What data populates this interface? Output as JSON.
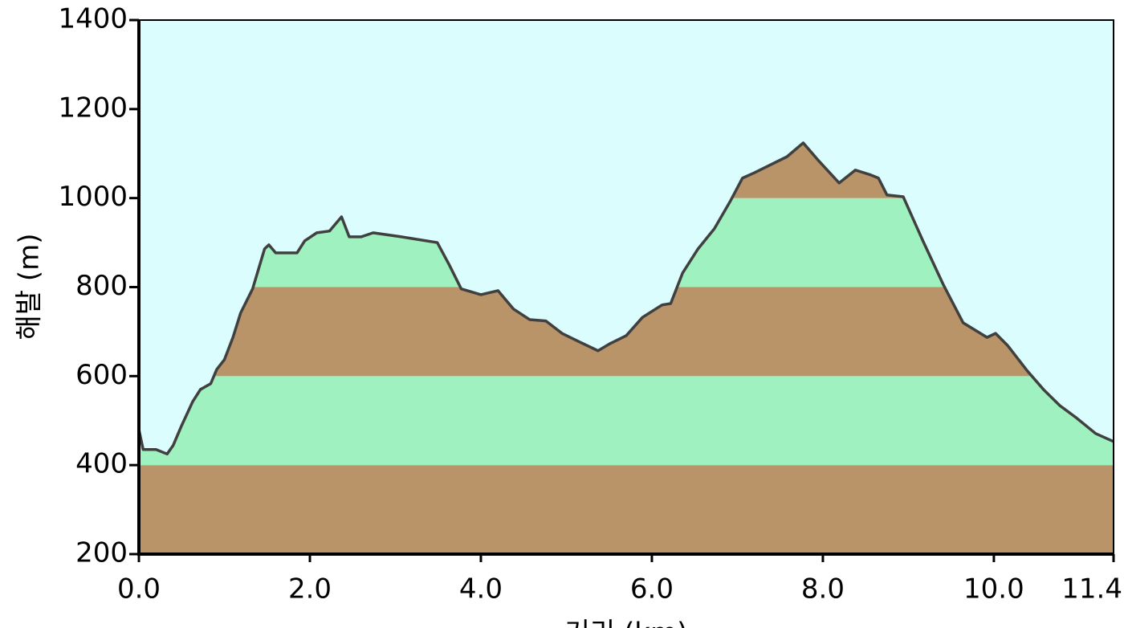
{
  "chart_data": {
    "type": "area",
    "xlabel": "거리 (km)",
    "ylabel": "해발 (m)",
    "x": [
      0,
      0.05,
      0.2,
      0.33,
      0.4,
      0.5,
      0.63,
      0.72,
      0.84,
      0.91,
      1.0,
      1.1,
      1.19,
      1.33,
      1.47,
      1.52,
      1.6,
      1.85,
      1.94,
      2.08,
      2.23,
      2.37,
      2.46,
      2.6,
      2.74,
      3.07,
      3.49,
      3.63,
      3.77,
      4.0,
      4.2,
      4.38,
      4.57,
      4.76,
      4.95,
      5.14,
      5.37,
      5.51,
      5.7,
      5.89,
      6.12,
      6.22,
      6.36,
      6.54,
      6.73,
      6.92,
      7.06,
      7.2,
      7.39,
      7.58,
      7.77,
      7.95,
      8.19,
      8.38,
      8.56,
      8.65,
      8.75,
      8.94,
      9.17,
      9.41,
      9.64,
      9.92,
      10.02,
      10.16,
      10.39,
      10.58,
      10.77,
      10.96,
      11.19,
      11.4
    ],
    "values": [
      480,
      435,
      435,
      425,
      444,
      489,
      543,
      570,
      583,
      615,
      637,
      687,
      742,
      796,
      886,
      895,
      877,
      877,
      904,
      922,
      926,
      958,
      913,
      913,
      922,
      913,
      900,
      850,
      796,
      783,
      792,
      751,
      727,
      724,
      696,
      678,
      657,
      673,
      691,
      732,
      760,
      763,
      832,
      886,
      931,
      994,
      1045,
      1057,
      1075,
      1093,
      1124,
      1084,
      1034,
      1063,
      1052,
      1045,
      1007,
      1003,
      904,
      805,
      720,
      687,
      696,
      669,
      612,
      570,
      534,
      507,
      471,
      453
    ],
    "xlim": [
      0,
      11.4
    ],
    "xticks": [
      {
        "value": 0,
        "label": "0.0"
      },
      {
        "value": 2,
        "label": "2.0"
      },
      {
        "value": 4,
        "label": "4.0"
      },
      {
        "value": 6,
        "label": "6.0"
      },
      {
        "value": 8,
        "label": "8.0"
      },
      {
        "value": 10,
        "label": "10.0"
      },
      11.4
    ],
    "ylim": [
      200,
      1400
    ],
    "yticks": [
      200,
      400,
      600,
      800,
      1000,
      1200,
      1400
    ],
    "line_color": "#404040",
    "background": "#dcfdfd",
    "band_colors": [
      "#b99468",
      "#9ff2bf"
    ]
  }
}
